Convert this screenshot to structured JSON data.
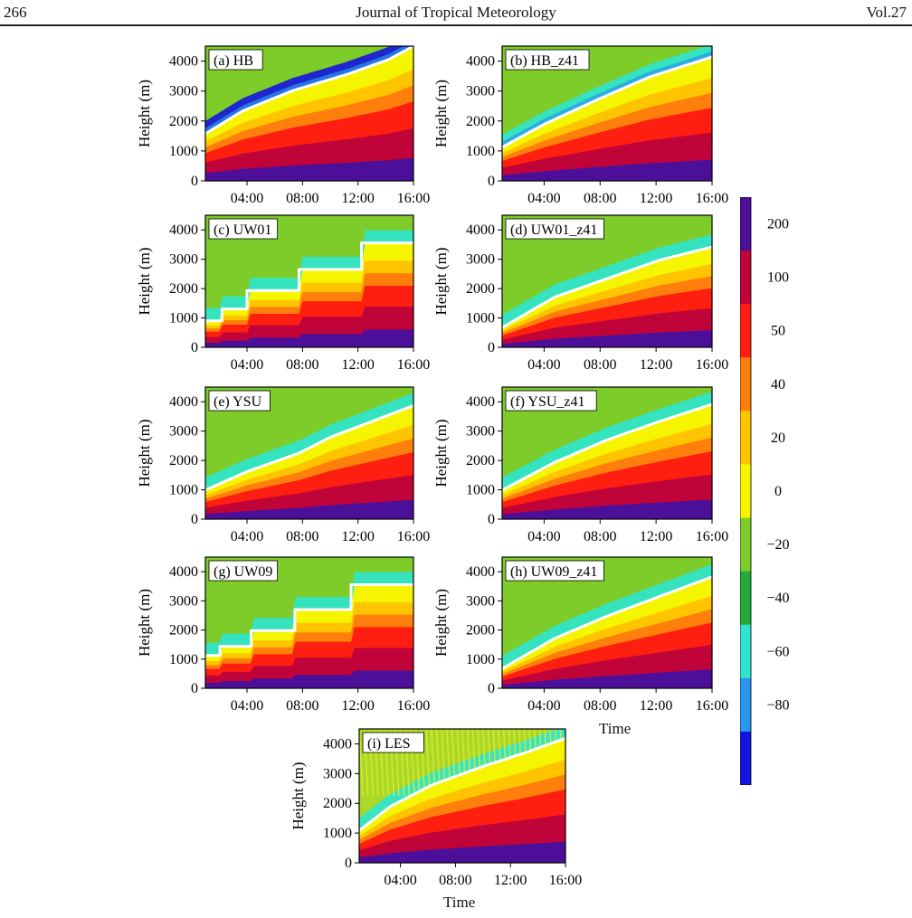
{
  "header": {
    "page_number": "266",
    "journal_title": "Journal of Tropical Meteorology",
    "volume": "Vol.27"
  },
  "y_axis": {
    "label": "Height (m)",
    "ticks": [
      "0",
      "1000",
      "2000",
      "3000",
      "4000"
    ]
  },
  "x_axis": {
    "ticks": [
      "04:00",
      "08:00",
      "12:00",
      "16:00"
    ],
    "title": "Time"
  },
  "colorbar": {
    "labels": [
      "200",
      "100",
      "50",
      "40",
      "20",
      "0",
      "−20",
      "−40",
      "−60",
      "−80"
    ],
    "colors": [
      "#4b0f99",
      "#c0043a",
      "#ff1f10",
      "#ff7f0c",
      "#ffc400",
      "#f5f500",
      "#7dcc2a",
      "#22aa3a",
      "#2ee5cf",
      "#2a96f0",
      "#1414e0"
    ]
  },
  "chart_data": [
    {
      "type": "heatmap",
      "panel_label": "(a) HB"
    },
    {
      "type": "heatmap",
      "panel_label": "(b) HB_z41"
    },
    {
      "type": "heatmap",
      "panel_label": "(c) UW01"
    },
    {
      "type": "heatmap",
      "panel_label": "(d) UW01_z41"
    },
    {
      "type": "heatmap",
      "panel_label": "(e) YSU"
    },
    {
      "type": "heatmap",
      "panel_label": "(f) YSU_z41"
    },
    {
      "type": "heatmap",
      "panel_label": "(g) UW09"
    },
    {
      "type": "heatmap",
      "panel_label": "(h) UW09_z41"
    },
    {
      "type": "heatmap",
      "panel_label": "(i) LES"
    }
  ]
}
